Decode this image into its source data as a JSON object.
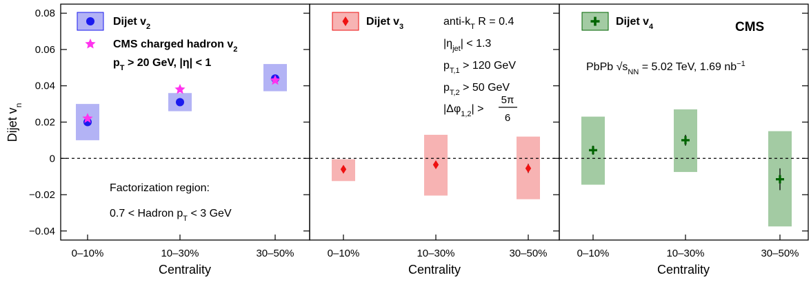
{
  "figure": {
    "ylabel": "Dijet v",
    "ylabel_sub": "n",
    "xlabel": "Centrality",
    "ylim": [
      -0.045,
      0.085
    ],
    "yticks": [
      -0.04,
      -0.02,
      0,
      0.02,
      0.04,
      0.06,
      0.08
    ],
    "ytick_labels": [
      "−0.04",
      "−0.02",
      "0",
      "0.02",
      "0.04",
      "0.06",
      "0.08"
    ],
    "reference_line": 0,
    "colors": {
      "v2_marker": "#1a1aee",
      "v2_box": "#b3b3f5",
      "hadron_marker": "#ff33ee",
      "v3_marker": "#ee1111",
      "v3_box": "#f7b3b3",
      "v4_marker": "#006400",
      "v4_box": "#a3cba3"
    }
  },
  "chart_data": [
    {
      "type": "scatter",
      "panel": "v2",
      "categories": [
        "0–10%",
        "10–30%",
        "30–50%"
      ],
      "xlabel": "Centrality",
      "ylabel": "Dijet v_n",
      "series": [
        {
          "name": "Dijet v2",
          "label": "Dijet v",
          "label_sub": "2",
          "marker": "circle",
          "values": [
            0.02,
            0.031,
            0.044
          ],
          "syst_low": [
            0.01,
            0.026,
            0.037
          ],
          "syst_high": [
            0.03,
            0.036,
            0.052
          ]
        },
        {
          "name": "CMS charged hadron v2",
          "label": "CMS charged hadron v",
          "label_sub": "2",
          "marker": "star",
          "values": [
            0.022,
            0.038,
            0.043
          ]
        }
      ],
      "legend_line3": {
        "a": "p",
        "a_sub": "T",
        "b": " > 20 GeV, |η| < 1"
      },
      "annotations": {
        "line1": "Factorization region:",
        "line2_a": "0.7 < Hadron p",
        "line2_sub": "T",
        "line2_b": " < 3 GeV"
      }
    },
    {
      "type": "scatter",
      "panel": "v3",
      "categories": [
        "0–10%",
        "10–30%",
        "30–50%"
      ],
      "xlabel": "Centrality",
      "series": [
        {
          "name": "Dijet v3",
          "label": "Dijet v",
          "label_sub": "3",
          "marker": "diamond",
          "values": [
            -0.006,
            -0.0035,
            -0.0055
          ],
          "stat_err": [
            0.001,
            0.001,
            0.0025
          ],
          "syst_low": [
            -0.0125,
            -0.0205,
            -0.0225
          ],
          "syst_high": [
            -0.0005,
            0.013,
            0.012
          ]
        }
      ],
      "annotations": {
        "l1_a": "anti-k",
        "l1_sub": "T",
        "l1_b": " R = 0.4",
        "l2_a": "|η",
        "l2_sub": "jet",
        "l2_b": "| < 1.3",
        "l3_a": "p",
        "l3_sub": "T,1",
        "l3_b": " > 120 GeV",
        "l4_a": "p",
        "l4_sub": "T,2",
        "l4_b": " > 50 GeV",
        "l5_a": "|Δφ",
        "l5_sub": "1,2",
        "l5_b": "| > ",
        "l5_num": "5π",
        "l5_den": "6"
      }
    },
    {
      "type": "scatter",
      "panel": "v4",
      "categories": [
        "0–10%",
        "10–30%",
        "30–50%"
      ],
      "xlabel": "Centrality",
      "series": [
        {
          "name": "Dijet v4",
          "label": "Dijet v",
          "label_sub": "4",
          "marker": "cross",
          "values": [
            0.0045,
            0.01,
            -0.0115
          ],
          "stat_err": [
            0.0025,
            0.003,
            0.006
          ],
          "syst_low": [
            -0.0145,
            -0.0075,
            -0.0375
          ],
          "syst_high": [
            0.023,
            0.027,
            0.015
          ]
        }
      ],
      "annotations": {
        "cms": "CMS",
        "energy_a": "PbPb ",
        "energy_sqrt": "√",
        "energy_s": "s",
        "energy_sub": "NN",
        "energy_b": " = 5.02 TeV, 1.69 nb",
        "energy_sup": "−1"
      }
    }
  ]
}
